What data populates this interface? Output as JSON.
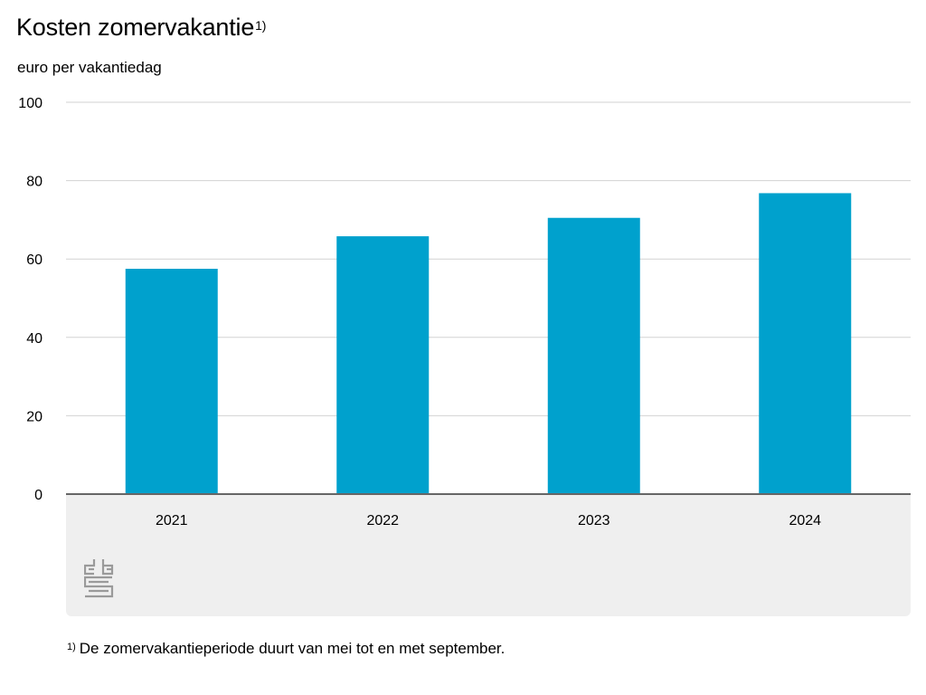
{
  "header": {
    "title": "Kosten zomervakantie",
    "title_note_marker": "1)",
    "unit_label": "euro per vakantiedag"
  },
  "footnote": {
    "marker": "1)",
    "text": "De zomervakantieperiode duurt van mei tot en met september."
  },
  "logo": {
    "icon": "cbs-logo-icon"
  },
  "colors": {
    "bar": "#00a1cd",
    "gridline": "#d2d2d2",
    "baseline": "#666666",
    "axis_band": "#efefef"
  },
  "chart_data": {
    "type": "bar",
    "title": "Kosten zomervakantie",
    "ylabel": "euro per vakantiedag",
    "xlabel": "",
    "categories": [
      "2021",
      "2022",
      "2023",
      "2024"
    ],
    "values": [
      57.5,
      65.8,
      70.5,
      76.8
    ],
    "ylim": [
      0,
      100
    ],
    "yticks": [
      0,
      20,
      40,
      60,
      80,
      100
    ],
    "grid": true,
    "legend": "none"
  }
}
